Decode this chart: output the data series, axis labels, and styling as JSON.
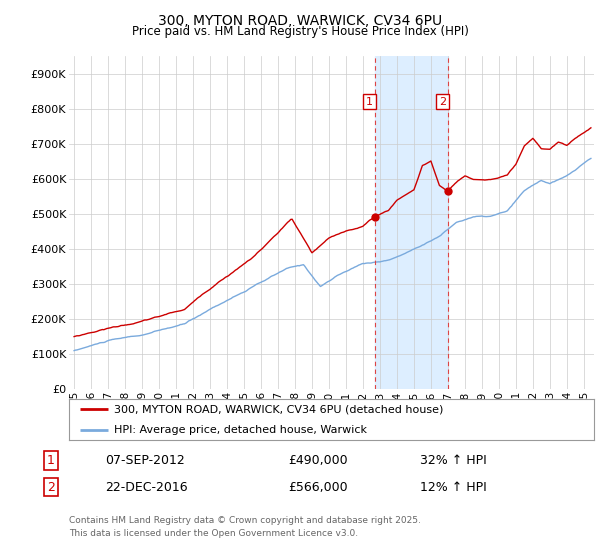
{
  "title": "300, MYTON ROAD, WARWICK, CV34 6PU",
  "subtitle": "Price paid vs. HM Land Registry's House Price Index (HPI)",
  "legend_line1": "300, MYTON ROAD, WARWICK, CV34 6PU (detached house)",
  "legend_line2": "HPI: Average price, detached house, Warwick",
  "transaction1_date": "07-SEP-2012",
  "transaction1_price": 490000,
  "transaction1_hpi": "32% ↑ HPI",
  "transaction2_date": "22-DEC-2016",
  "transaction2_price": 566000,
  "transaction2_hpi": "12% ↑ HPI",
  "transaction1_x": 2012.69,
  "transaction2_x": 2016.98,
  "red_line_color": "#cc0000",
  "blue_line_color": "#7aaadd",
  "shaded_color": "#ddeeff",
  "vline_color": "#dd4444",
  "background_color": "#ffffff",
  "grid_color": "#cccccc",
  "footer_text": "Contains HM Land Registry data © Crown copyright and database right 2025.\nThis data is licensed under the Open Government Licence v3.0.",
  "ylim": [
    0,
    950000
  ],
  "yticks": [
    0,
    100000,
    200000,
    300000,
    400000,
    500000,
    600000,
    700000,
    800000,
    900000
  ],
  "ytick_labels": [
    "£0",
    "£100K",
    "£200K",
    "£300K",
    "£400K",
    "£500K",
    "£600K",
    "£700K",
    "£800K",
    "£900K"
  ],
  "xlim_start": 1994.7,
  "xlim_end": 2025.6,
  "blue_key_x": [
    1995.0,
    1997.0,
    1999.0,
    2001.5,
    2003.5,
    2005.5,
    2007.5,
    2008.5,
    2009.5,
    2010.5,
    2012.0,
    2013.5,
    2014.5,
    2015.5,
    2016.5,
    2017.5,
    2018.5,
    2019.5,
    2020.5,
    2021.5,
    2022.5,
    2023.0,
    2024.0,
    2025.4
  ],
  "blue_key_y": [
    110000,
    138000,
    152000,
    182000,
    238000,
    288000,
    338000,
    348000,
    288000,
    318000,
    352000,
    362000,
    382000,
    408000,
    432000,
    472000,
    488000,
    488000,
    502000,
    558000,
    588000,
    578000,
    598000,
    648000
  ],
  "red_key_x": [
    1995.0,
    1997.0,
    1999.0,
    2001.5,
    2003.5,
    2005.5,
    2007.0,
    2007.8,
    2009.0,
    2010.0,
    2011.0,
    2012.0,
    2012.69,
    2013.5,
    2014.0,
    2015.0,
    2015.5,
    2016.0,
    2016.5,
    2016.98,
    2017.5,
    2018.0,
    2018.5,
    2019.5,
    2020.5,
    2021.0,
    2021.5,
    2022.0,
    2022.5,
    2023.0,
    2023.5,
    2024.0,
    2024.5,
    2025.4
  ],
  "red_key_y": [
    150000,
    175000,
    195000,
    228000,
    308000,
    378000,
    448000,
    488000,
    388000,
    428000,
    448000,
    463000,
    490000,
    508000,
    538000,
    568000,
    638000,
    648000,
    580000,
    566000,
    590000,
    608000,
    598000,
    598000,
    608000,
    638000,
    688000,
    708000,
    678000,
    678000,
    698000,
    688000,
    708000,
    738000
  ]
}
